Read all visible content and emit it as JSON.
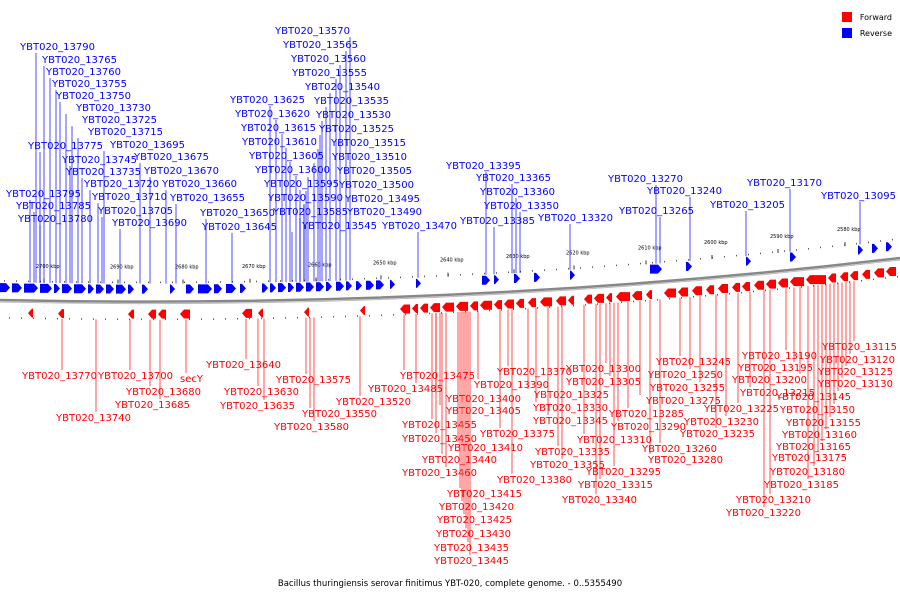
{
  "caption": "Bacillus thuringiensis serovar finitimus YBT-020, complete genome. - 0..5355490",
  "legend": [
    {
      "label": "Forward",
      "color": "#ff0000"
    },
    {
      "label": "Reverse",
      "color": "#0000ff"
    }
  ],
  "colors": {
    "forward": "#ff0000",
    "reverse": "#0000ff",
    "backbone": "#888888"
  },
  "ticks": [
    "2700 kbp",
    "2690 kbp",
    "2680 kbp",
    "2670 kbp",
    "2660 kbp",
    "2650 kbp",
    "2640 kbp",
    "2630 kbp",
    "2620 kbp",
    "2610 kbp",
    "2600 kbp",
    "2590 kbp",
    "2580 kbp"
  ],
  "reverse_labels": [
    "YBT020_13790",
    "YBT020_13765",
    "YBT020_13760",
    "YBT020_13755",
    "YBT020_13750",
    "YBT020_13730",
    "YBT020_13725",
    "YBT020_13715",
    "YBT020_13775",
    "YBT020_13695",
    "YBT020_13745",
    "YBT020_13675",
    "YBT020_13735",
    "YBT020_13670",
    "YBT020_13720",
    "YBT020_13660",
    "YBT020_13795",
    "YBT020_13710",
    "YBT020_13785",
    "YBT020_13705",
    "YBT020_13655",
    "YBT020_13650",
    "YBT020_13780",
    "YBT020_13690",
    "YBT020_13570",
    "YBT020_13565",
    "YBT020_13560",
    "YBT020_13555",
    "YBT020_13540",
    "YBT020_13625",
    "YBT020_13535",
    "YBT020_13620",
    "YBT020_13530",
    "YBT020_13615",
    "YBT020_13525",
    "YBT020_13610",
    "YBT020_13515",
    "YBT020_13605",
    "YBT020_13510",
    "YBT020_13600",
    "YBT020_13505",
    "YBT020_13595",
    "YBT020_13500",
    "YBT020_13590",
    "YBT020_13495",
    "YBT020_13585",
    "YBT020_13490",
    "YBT020_13645",
    "YBT020_13545",
    "YBT020_13470",
    "YBT020_13395",
    "YBT020_13365",
    "YBT020_13360",
    "YBT020_13350",
    "YBT020_13385",
    "YBT020_13320",
    "YBT020_13270",
    "YBT020_13240",
    "YBT020_13265",
    "YBT020_13205",
    "YBT020_13170",
    "YBT020_13095"
  ],
  "forward_labels": [
    "YBT020_13770",
    "YBT020_13740",
    "YBT020_13700",
    "YBT020_13680",
    "YBT020_13685",
    "secY",
    "YBT020_13640",
    "YBT020_13630",
    "YBT020_13635",
    "YBT020_13575",
    "YBT020_13550",
    "YBT020_13580",
    "YBT020_13520",
    "YBT020_13475",
    "YBT020_13485",
    "YBT020_13400",
    "YBT020_13405",
    "YBT020_13455",
    "YBT020_13450",
    "YBT020_13440",
    "YBT020_13460",
    "YBT020_13410",
    "YBT020_13415",
    "YBT020_13420",
    "YBT020_13425",
    "YBT020_13430",
    "YBT020_13435",
    "YBT020_13445",
    "YBT020_13390",
    "YBT020_13370",
    "YBT020_13375",
    "YBT020_13380",
    "YBT020_13325",
    "YBT020_13330",
    "YBT020_13345",
    "YBT020_13335",
    "YBT020_13355",
    "YBT020_13310",
    "YBT020_13340",
    "YBT020_13300",
    "YBT020_13305",
    "YBT020_13295",
    "YBT020_13315",
    "YBT020_13290",
    "YBT020_13285",
    "YBT020_13275",
    "YBT020_13280",
    "YBT020_13260",
    "YBT020_13245",
    "YBT020_13250",
    "YBT020_13255",
    "YBT020_13235",
    "YBT020_13230",
    "YBT020_13225",
    "YBT020_13215",
    "YBT020_13210",
    "YBT020_13220",
    "YBT020_13190",
    "YBT020_13195",
    "YBT020_13200",
    "YBT020_13185",
    "YBT020_13180",
    "YBT020_13175",
    "YBT020_13165",
    "YBT020_13160",
    "YBT020_13155",
    "YBT020_13150",
    "YBT020_13145",
    "YBT020_13130",
    "YBT020_13125",
    "YBT020_13120",
    "YBT020_13115"
  ]
}
